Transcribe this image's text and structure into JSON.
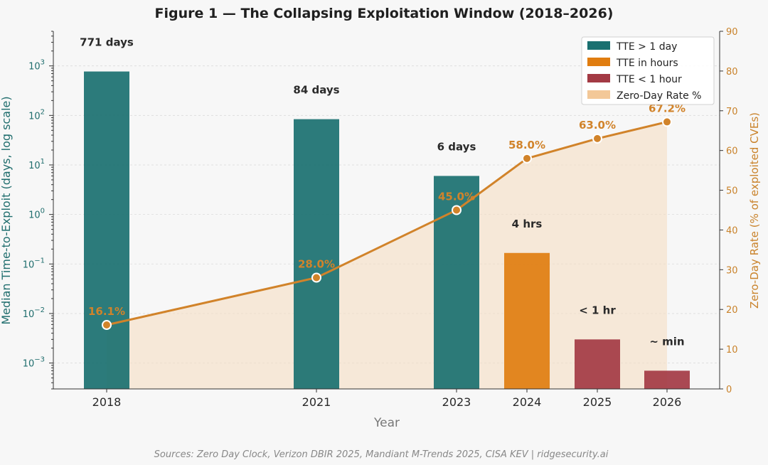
{
  "title": "Figure 1 — The Collapsing Exploitation Window (2018–2026)",
  "source": "Sources: Zero Day Clock, Verizon DBIR 2025, Mandiant M-Trends 2025, CISA KEV | ridgesecurity.ai",
  "chart_data": {
    "type": "bar",
    "xlabel": "Year",
    "ylabel_left": "Median Time-to-Exploit (days, log scale)",
    "ylabel_right": "Zero-Day Rate (% of exploited CVEs)",
    "left_axis": {
      "scale": "log",
      "ylim": [
        0.0003,
        5000
      ],
      "tick_values": [
        0.001,
        0.01,
        0.1,
        1,
        10,
        100,
        1000
      ],
      "tick_bases": [
        "10",
        "10",
        "10",
        "10",
        "10",
        "10",
        "10"
      ],
      "tick_exponents": [
        "−3",
        "−2",
        "−1",
        "0",
        "1",
        "2",
        "3"
      ]
    },
    "right_axis": {
      "scale": "linear",
      "ylim": [
        0,
        90
      ],
      "ticks": [
        "0",
        "10",
        "20",
        "30",
        "40",
        "50",
        "60",
        "70",
        "80",
        "90"
      ]
    },
    "x": [
      2018,
      2021,
      2023,
      2024,
      2025,
      2026
    ],
    "x_tick_labels": [
      "2018",
      "2021",
      "2023",
      "2024",
      "2025",
      "2026"
    ],
    "bars": [
      {
        "year": 2018,
        "value": 771,
        "label": "771 days",
        "category": "TTE > 1 day"
      },
      {
        "year": 2021,
        "value": 84,
        "label": "84 days",
        "category": "TTE > 1 day"
      },
      {
        "year": 2023,
        "value": 6,
        "label": "6 days",
        "category": "TTE > 1 day"
      },
      {
        "year": 2024,
        "value": 0.167,
        "label": "4 hrs",
        "category": "TTE in hours"
      },
      {
        "year": 2025,
        "value": 0.003,
        "label": "< 1 hr",
        "category": "TTE < 1 hour"
      },
      {
        "year": 2026,
        "value": 0.0007,
        "label": "~ min",
        "category": "TTE < 1 hour"
      }
    ],
    "line_series": {
      "name": "Zero-Day Rate %",
      "values": [
        16.1,
        28.0,
        45.0,
        58.0,
        63.0,
        67.2
      ],
      "labels": [
        "16.1%",
        "28.0%",
        "45.0%",
        "58.0%",
        "63.0%",
        "67.2%"
      ]
    },
    "legend": {
      "position": "top-right",
      "entries": [
        {
          "label": "TTE > 1 day",
          "color": "#1a7070"
        },
        {
          "label": "TTE in hours",
          "color": "#e07d10"
        },
        {
          "label": "TTE < 1 hour",
          "color": "#a33a44"
        },
        {
          "label": "Zero-Day Rate %",
          "color": "#f3c898"
        }
      ]
    },
    "grid": true,
    "colors": {
      "tte_day": "#1a7070",
      "tte_hours": "#e07d10",
      "tte_hour_less": "#a33a44",
      "rate_line": "#d1832a",
      "rate_fill": "#f6dcc0",
      "left_axis": "#1f6d6d",
      "right_axis": "#c9822a"
    }
  }
}
